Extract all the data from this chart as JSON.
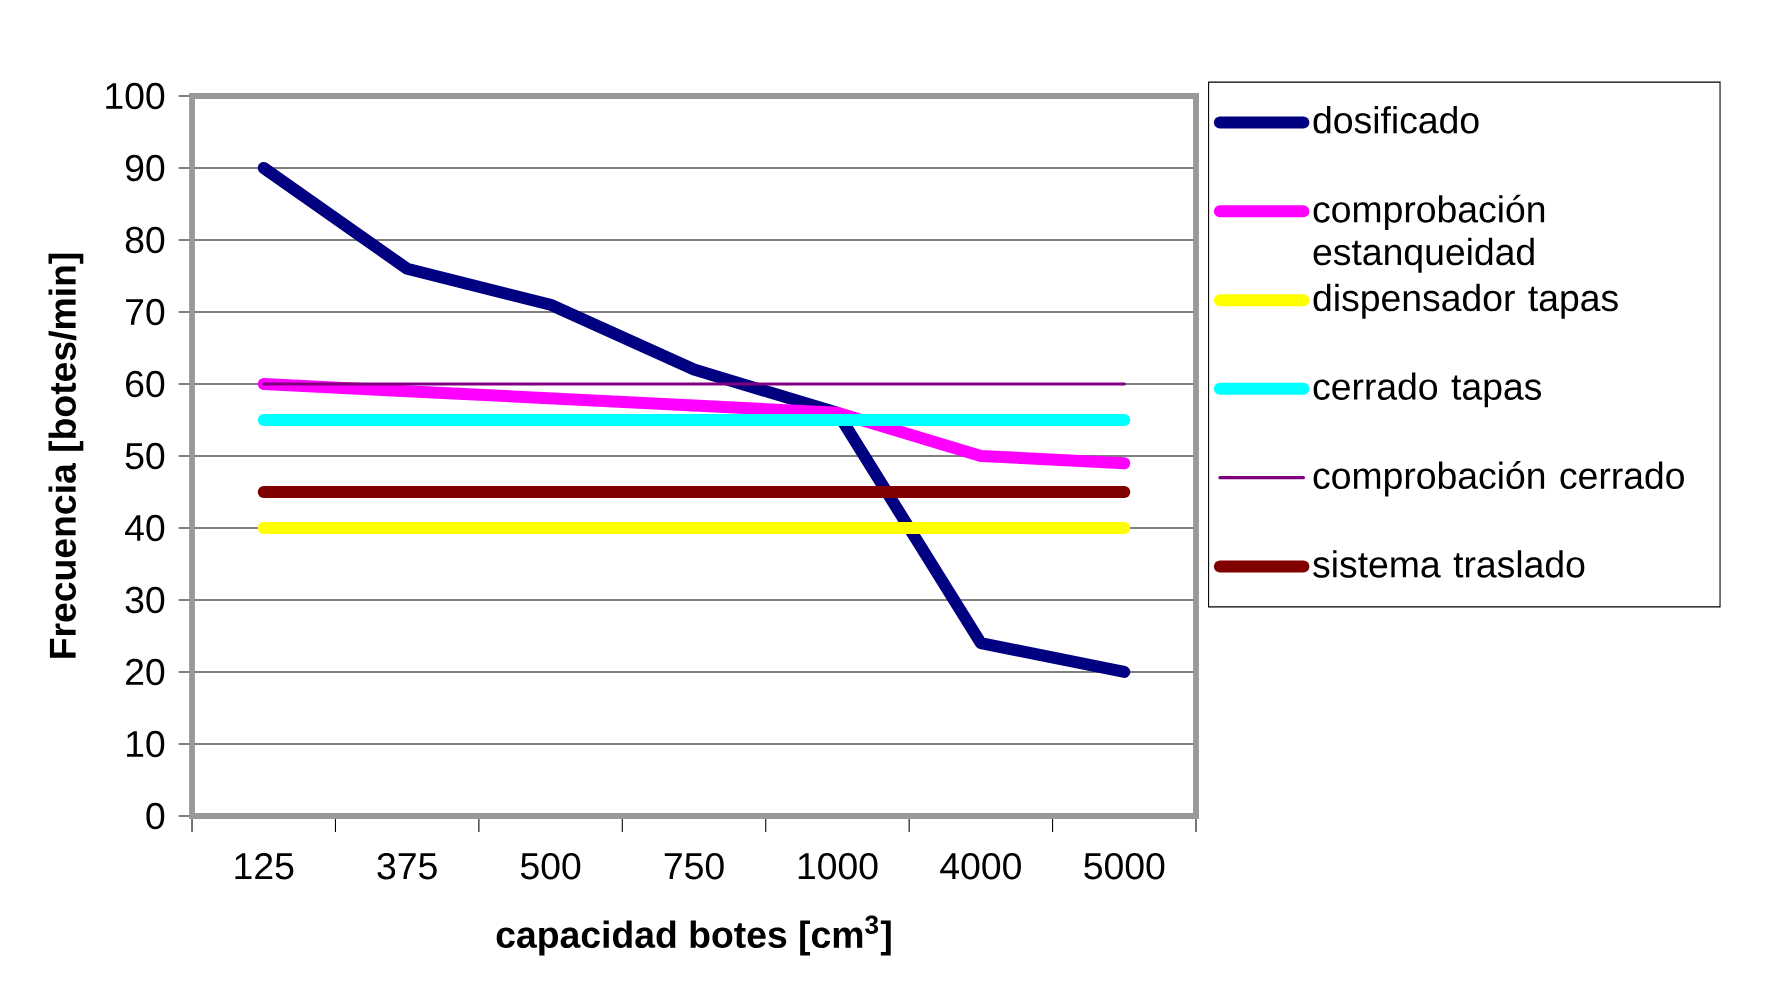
{
  "chart_data": {
    "type": "line",
    "xlabel": "capacidad botes [cm$^{3}$]",
    "ylabel": "Frecuencia [botes/min]",
    "categories": [
      "125",
      "375",
      "500",
      "750",
      "1000",
      "4000",
      "5000"
    ],
    "series": [
      {
        "name": "dosificado",
        "color": "#000080",
        "values": [
          90,
          76,
          71,
          62,
          56,
          24,
          20
        ]
      },
      {
        "name": "comprobación estanqueidad",
        "color": "#ff00ff",
        "values": [
          60,
          59,
          58,
          57,
          56,
          50,
          49
        ]
      },
      {
        "name": "dispensador tapas",
        "color": "#ffff00",
        "values": [
          40,
          40,
          40,
          40,
          40,
          40,
          40
        ]
      },
      {
        "name": "cerrado tapas",
        "color": "#00ffff",
        "values": [
          55,
          55,
          55,
          55,
          55,
          55,
          55
        ]
      },
      {
        "name": "comprobación cerrado",
        "color": "#800080",
        "values": [
          60,
          60,
          60,
          60,
          60,
          60,
          60
        ]
      },
      {
        "name": "sistema traslado",
        "color": "#800000",
        "values": [
          45,
          45,
          45,
          45,
          45,
          45,
          45
        ]
      }
    ],
    "ylim": [
      0,
      100
    ],
    "yticks": [
      0,
      10,
      20,
      30,
      40,
      50,
      60,
      70,
      80,
      90,
      100
    ],
    "grid": "y",
    "legend": "right"
  }
}
